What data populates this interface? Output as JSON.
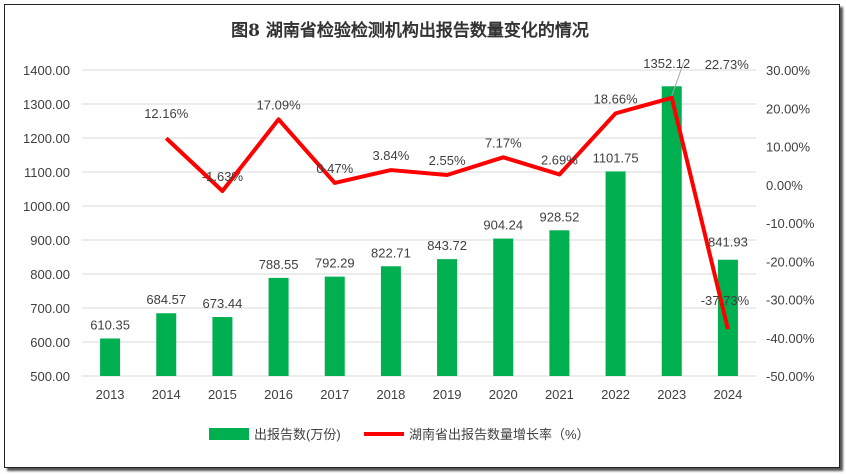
{
  "chart_data": {
    "type": "bar+line",
    "title": "图8  湖南省检验检测机构出报告数量变化的情况",
    "categories": [
      "2013",
      "2014",
      "2015",
      "2016",
      "2017",
      "2018",
      "2019",
      "2020",
      "2021",
      "2022",
      "2023",
      "2024"
    ],
    "series": [
      {
        "name": "出报告数(万份)",
        "type": "bar",
        "axis": "left",
        "color": "#00B050",
        "values": [
          610.35,
          684.57,
          673.44,
          788.55,
          792.29,
          822.71,
          843.72,
          904.24,
          928.52,
          1101.75,
          1352.12,
          841.93
        ],
        "labels": [
          "610.35",
          "684.57",
          "673.44",
          "788.55",
          "792.29",
          "822.71",
          "843.72",
          "904.24",
          "928.52",
          "1101.75",
          "1352.12",
          "841.93"
        ]
      },
      {
        "name": "湖南省出报告数量增长率（%）",
        "type": "line",
        "axis": "right",
        "color": "#FF0000",
        "values": [
          null,
          12.16,
          -1.63,
          17.09,
          0.47,
          3.84,
          2.55,
          7.17,
          2.69,
          18.66,
          22.73,
          -37.73
        ],
        "labels": [
          "",
          "12.16%",
          "-1.63%",
          "17.09%",
          "0.47%",
          "3.84%",
          "2.55%",
          "7.17%",
          "2.69%",
          "18.66%",
          "22.73%",
          "-37.73%"
        ]
      }
    ],
    "left_axis": {
      "min": 500,
      "max": 1400,
      "step": 100,
      "ticks": [
        "500.00",
        "600.00",
        "700.00",
        "800.00",
        "900.00",
        "1000.00",
        "1100.00",
        "1200.00",
        "1300.00",
        "1400.00"
      ]
    },
    "right_axis": {
      "min": -50,
      "max": 30,
      "step": 10,
      "ticks": [
        "-50.00%",
        "-40.00%",
        "-30.00%",
        "-20.00%",
        "-10.00%",
        "0.00%",
        "10.00%",
        "20.00%",
        "30.00%"
      ]
    },
    "grid": true,
    "legend": "bottom"
  }
}
